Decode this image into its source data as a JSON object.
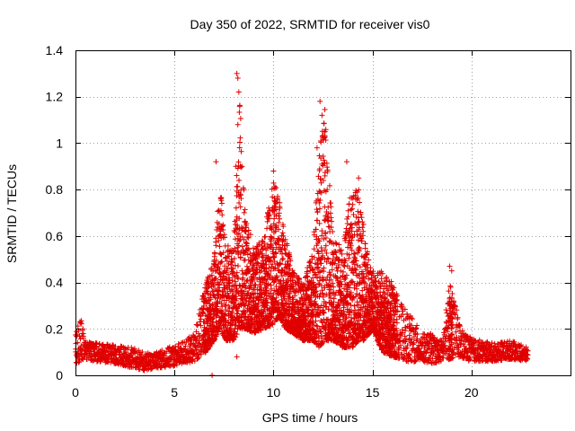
{
  "chart_data": {
    "type": "scatter",
    "title": "Day 350 of 2022, SRMTID for receiver vis0",
    "xlabel": "GPS time / hours",
    "ylabel": "SRMTID / TECUs",
    "xlim": [
      0,
      25
    ],
    "ylim": [
      0,
      1.4
    ],
    "x_ticks": [
      0,
      5,
      10,
      15,
      20
    ],
    "y_ticks": [
      0,
      0.2,
      0.4,
      0.6,
      0.8,
      1,
      1.2,
      1.4
    ],
    "x_tick_labels": [
      "0",
      "5",
      "10",
      "15",
      "20"
    ],
    "y_tick_labels": [
      "0",
      "0.2",
      "0.4",
      "0.6",
      "0.8",
      "1",
      "1.2",
      "1.4"
    ],
    "grid": true,
    "marker": "plus",
    "series": [
      {
        "name": "SRMTID vis0",
        "color": "#e00000",
        "envelope": {
          "note": "estimated typical (lo, hi) band of point values vs. GPS hour",
          "hours": [
            0,
            0.3,
            0.5,
            1,
            2,
            3,
            3.5,
            4,
            5,
            5.5,
            6,
            6.3,
            6.6,
            7,
            7.3,
            7.6,
            8,
            8.3,
            8.6,
            9,
            9.5,
            10,
            10.3,
            10.6,
            11,
            11.5,
            12,
            12.3,
            12.6,
            13,
            13.5,
            14,
            14.3,
            14.6,
            15,
            15.5,
            16,
            16.5,
            17,
            17.5,
            18,
            18.5,
            18.9,
            19.2,
            19.5,
            20,
            21,
            22,
            22.8
          ],
          "lo": [
            0.05,
            0.06,
            0.07,
            0.06,
            0.05,
            0.03,
            0.02,
            0.03,
            0.04,
            0.05,
            0.06,
            0.08,
            0.1,
            0.15,
            0.2,
            0.15,
            0.15,
            0.2,
            0.2,
            0.18,
            0.2,
            0.22,
            0.25,
            0.2,
            0.18,
            0.15,
            0.15,
            0.12,
            0.15,
            0.15,
            0.12,
            0.12,
            0.15,
            0.15,
            0.2,
            0.1,
            0.08,
            0.07,
            0.05,
            0.06,
            0.05,
            0.06,
            0.07,
            0.08,
            0.07,
            0.06,
            0.06,
            0.07,
            0.06
          ],
          "hi": [
            0.2,
            0.25,
            0.15,
            0.14,
            0.13,
            0.12,
            0.1,
            0.1,
            0.13,
            0.15,
            0.18,
            0.3,
            0.4,
            0.5,
            0.85,
            0.55,
            0.6,
            1.2,
            0.7,
            0.55,
            0.6,
            0.85,
            0.75,
            0.6,
            0.45,
            0.4,
            0.55,
            0.98,
            1.15,
            0.6,
            0.55,
            0.85,
            0.8,
            0.6,
            0.45,
            0.45,
            0.4,
            0.3,
            0.25,
            0.18,
            0.18,
            0.15,
            0.4,
            0.3,
            0.2,
            0.16,
            0.14,
            0.15,
            0.12
          ]
        },
        "notable_points": [
          {
            "x": 6.9,
            "y": 0.0
          },
          {
            "x": 7.1,
            "y": 0.92
          },
          {
            "x": 8.15,
            "y": 1.3
          },
          {
            "x": 8.2,
            "y": 1.28
          },
          {
            "x": 8.25,
            "y": 1.22
          },
          {
            "x": 8.2,
            "y": 1.08
          },
          {
            "x": 8.1,
            "y": 0.9
          },
          {
            "x": 8.15,
            "y": 0.08
          },
          {
            "x": 10.0,
            "y": 0.88
          },
          {
            "x": 10.5,
            "y": 0.6
          },
          {
            "x": 12.35,
            "y": 1.18
          },
          {
            "x": 12.45,
            "y": 1.12
          },
          {
            "x": 12.6,
            "y": 1.05
          },
          {
            "x": 12.2,
            "y": 0.98
          },
          {
            "x": 13.7,
            "y": 0.92
          },
          {
            "x": 14.3,
            "y": 0.85
          },
          {
            "x": 14.55,
            "y": 0.65
          },
          {
            "x": 18.9,
            "y": 0.47
          },
          {
            "x": 19.0,
            "y": 0.45
          },
          {
            "x": 19.1,
            "y": 0.32
          }
        ]
      }
    ]
  }
}
